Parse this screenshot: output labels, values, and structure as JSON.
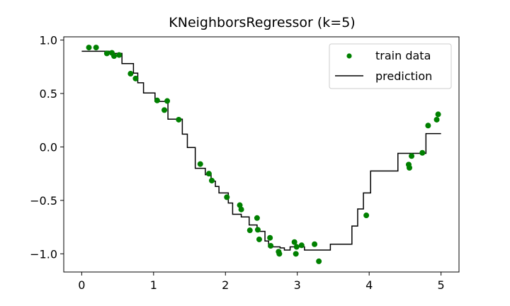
{
  "chart_data": {
    "type": "scatter",
    "title": "KNeighborsRegressor (k=5)",
    "xlabel": "",
    "ylabel": "",
    "xlim": [
      -0.25,
      5.25
    ],
    "ylim": [
      -1.17,
      1.03
    ],
    "x_ticks": [
      0,
      1,
      2,
      3,
      4,
      5
    ],
    "x_tick_labels": [
      "0",
      "1",
      "2",
      "3",
      "4",
      "5"
    ],
    "y_ticks": [
      -1.0,
      -0.5,
      0.0,
      0.5,
      1.0
    ],
    "y_tick_labels": [
      "−1.0",
      "−0.5",
      "0.0",
      "0.5",
      "1.0"
    ],
    "grid": false,
    "legend": {
      "position": "top-right",
      "entries": [
        "train data",
        "prediction"
      ]
    },
    "series": [
      {
        "name": "train data",
        "kind": "scatter",
        "color": "#008000",
        "points": [
          [
            0.1,
            0.93
          ],
          [
            0.2,
            0.93
          ],
          [
            0.35,
            0.875
          ],
          [
            0.42,
            0.88
          ],
          [
            0.45,
            0.85
          ],
          [
            0.52,
            0.86
          ],
          [
            0.68,
            0.685
          ],
          [
            0.75,
            0.64
          ],
          [
            1.05,
            0.435
          ],
          [
            1.15,
            0.345
          ],
          [
            1.19,
            0.43
          ],
          [
            1.35,
            0.255
          ],
          [
            1.65,
            -0.16
          ],
          [
            1.77,
            -0.25
          ],
          [
            1.81,
            -0.315
          ],
          [
            2.02,
            -0.47
          ],
          [
            2.2,
            -0.545
          ],
          [
            2.22,
            -0.585
          ],
          [
            2.34,
            -0.78
          ],
          [
            2.44,
            -0.665
          ],
          [
            2.45,
            -0.775
          ],
          [
            2.47,
            -0.865
          ],
          [
            2.62,
            -0.85
          ],
          [
            2.63,
            -0.925
          ],
          [
            2.74,
            -0.98
          ],
          [
            2.75,
            -1.0
          ],
          [
            2.96,
            -0.89
          ],
          [
            2.98,
            -1.0
          ],
          [
            2.99,
            -0.935
          ],
          [
            3.06,
            -0.92
          ],
          [
            3.24,
            -0.91
          ],
          [
            3.3,
            -1.07
          ],
          [
            3.96,
            -0.64
          ],
          [
            4.55,
            -0.165
          ],
          [
            4.56,
            -0.195
          ],
          [
            4.59,
            -0.085
          ],
          [
            4.74,
            -0.055
          ],
          [
            4.82,
            0.2
          ],
          [
            4.94,
            0.255
          ],
          [
            4.96,
            0.305
          ]
        ]
      },
      {
        "name": "prediction",
        "kind": "step",
        "color": "#000000",
        "points": [
          [
            0.0,
            0.895
          ],
          [
            0.38,
            0.895
          ],
          [
            0.38,
            0.875
          ],
          [
            0.56,
            0.875
          ],
          [
            0.56,
            0.78
          ],
          [
            0.72,
            0.78
          ],
          [
            0.72,
            0.69
          ],
          [
            0.78,
            0.69
          ],
          [
            0.78,
            0.6
          ],
          [
            0.86,
            0.6
          ],
          [
            0.86,
            0.505
          ],
          [
            1.02,
            0.505
          ],
          [
            1.02,
            0.425
          ],
          [
            1.2,
            0.425
          ],
          [
            1.2,
            0.26
          ],
          [
            1.4,
            0.26
          ],
          [
            1.4,
            0.12
          ],
          [
            1.47,
            0.12
          ],
          [
            1.47,
            -0.005
          ],
          [
            1.58,
            -0.005
          ],
          [
            1.58,
            -0.2
          ],
          [
            1.72,
            -0.2
          ],
          [
            1.72,
            -0.26
          ],
          [
            1.8,
            -0.26
          ],
          [
            1.8,
            -0.32
          ],
          [
            1.86,
            -0.32
          ],
          [
            1.86,
            -0.37
          ],
          [
            1.91,
            -0.37
          ],
          [
            1.91,
            -0.43
          ],
          [
            2.04,
            -0.43
          ],
          [
            2.04,
            -0.525
          ],
          [
            2.1,
            -0.525
          ],
          [
            2.1,
            -0.63
          ],
          [
            2.22,
            -0.63
          ],
          [
            2.22,
            -0.655
          ],
          [
            2.33,
            -0.655
          ],
          [
            2.33,
            -0.73
          ],
          [
            2.44,
            -0.73
          ],
          [
            2.44,
            -0.79
          ],
          [
            2.55,
            -0.79
          ],
          [
            2.55,
            -0.88
          ],
          [
            2.6,
            -0.88
          ],
          [
            2.6,
            -0.935
          ],
          [
            2.76,
            -0.935
          ],
          [
            2.76,
            -0.945
          ],
          [
            2.82,
            -0.945
          ],
          [
            2.82,
            -0.965
          ],
          [
            2.9,
            -0.965
          ],
          [
            2.9,
            -0.935
          ],
          [
            3.1,
            -0.935
          ],
          [
            3.1,
            -0.965
          ],
          [
            3.46,
            -0.965
          ],
          [
            3.46,
            -0.91
          ],
          [
            3.76,
            -0.91
          ],
          [
            3.76,
            -0.74
          ],
          [
            3.84,
            -0.74
          ],
          [
            3.84,
            -0.58
          ],
          [
            3.92,
            -0.58
          ],
          [
            3.92,
            -0.43
          ],
          [
            4.02,
            -0.43
          ],
          [
            4.02,
            -0.225
          ],
          [
            4.4,
            -0.225
          ],
          [
            4.4,
            -0.06
          ],
          [
            4.79,
            -0.06
          ],
          [
            4.79,
            0.125
          ],
          [
            5.0,
            0.125
          ]
        ]
      }
    ]
  }
}
